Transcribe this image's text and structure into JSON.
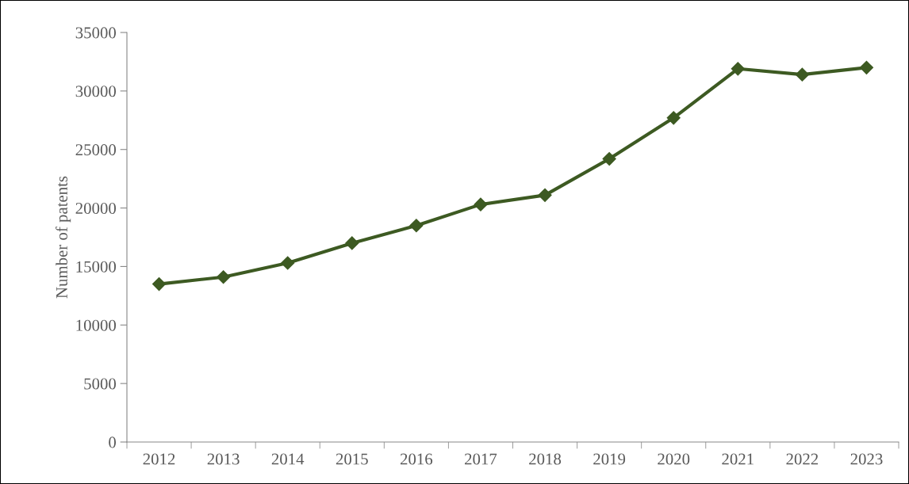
{
  "chart_data": {
    "type": "line",
    "ylabel": "Number of patents",
    "categories": [
      "2012",
      "2013",
      "2014",
      "2015",
      "2016",
      "2017",
      "2018",
      "2019",
      "2020",
      "2021",
      "2022",
      "2023"
    ],
    "series": [
      {
        "color": "#3d5a22",
        "values": [
          13500,
          14100,
          15300,
          17000,
          18500,
          20300,
          21100,
          24200,
          27700,
          31900,
          31400,
          32000
        ]
      }
    ],
    "ylim": [
      0,
      35000
    ],
    "yticks": [
      0,
      5000,
      10000,
      15000,
      20000,
      25000,
      30000,
      35000
    ],
    "marker": "diamond",
    "line_style": "solid",
    "grid": false,
    "legend": false
  }
}
